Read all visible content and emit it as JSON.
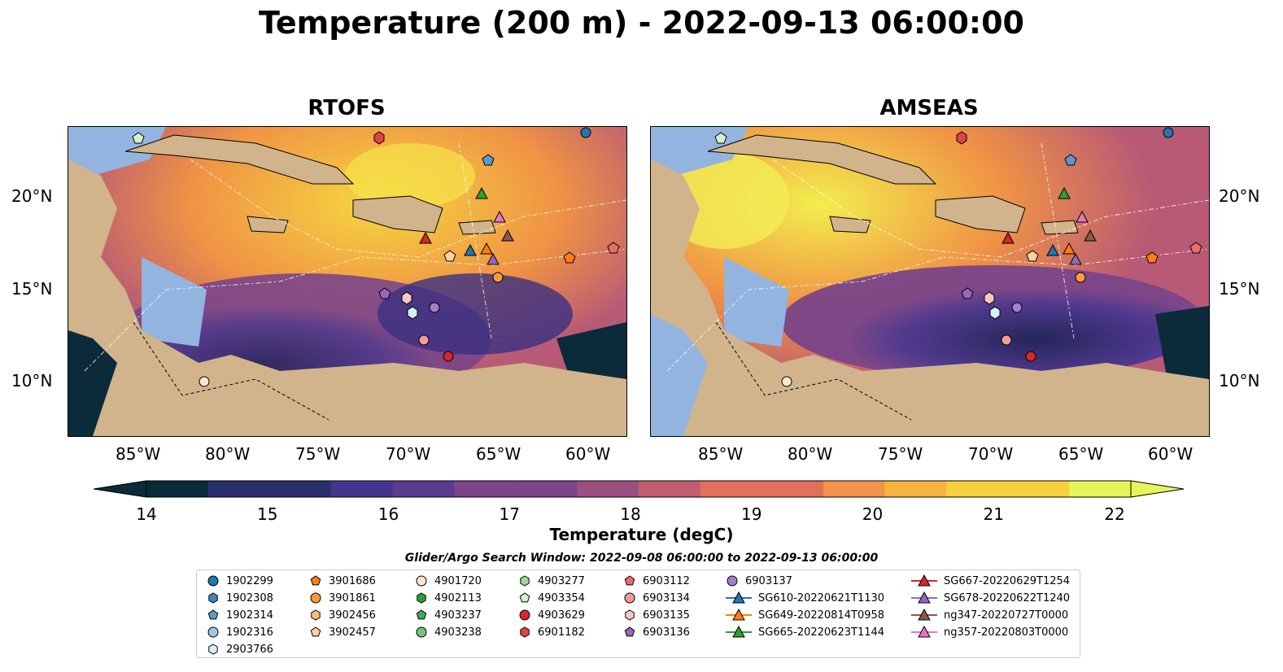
{
  "title": "Temperature (200 m) - 2022-09-13 06:00:00",
  "panels": [
    {
      "title": "RTOFS"
    },
    {
      "title": "AMSEAS"
    }
  ],
  "longitude_ticks": [
    "85°W",
    "80°W",
    "75°W",
    "70°W",
    "65°W",
    "60°W"
  ],
  "latitude_ticks": [
    "20°N",
    "15°N",
    "10°N"
  ],
  "colorbar": {
    "label": "Temperature (degC)",
    "min": 14,
    "max": 22,
    "ticks": [
      "14",
      "15",
      "16",
      "17",
      "18",
      "19",
      "20",
      "21",
      "22"
    ],
    "colormap_stops": [
      "#0b2a3a",
      "#2b2f6e",
      "#45348f",
      "#5b3a8f",
      "#7a4589",
      "#9b4f80",
      "#c05e6f",
      "#e0705a",
      "#f4934a",
      "#f6b33e",
      "#f5d13e",
      "#e8f55a"
    ]
  },
  "search_window": "Glider/Argo Search Window: 2022-09-08 06:00:00 to 2022-09-13 06:00:00",
  "colors": {
    "land": "#d2b48c",
    "shelf": "#94b4e0",
    "deep_ocean_warm": "#f39c45",
    "deep_ocean_cool": "#3d3388"
  },
  "legend": [
    {
      "label": "1902299",
      "marker": "circle",
      "color": "#1f77b4"
    },
    {
      "label": "1902308",
      "marker": "hexagon",
      "color": "#3b86c2"
    },
    {
      "label": "1902314",
      "marker": "pentagon",
      "color": "#5b9ad0"
    },
    {
      "label": "1902316",
      "marker": "circle",
      "color": "#9ecae1"
    },
    {
      "label": "2903766",
      "marker": "hexagon",
      "color": "#d6efff"
    },
    {
      "label": "3901686",
      "marker": "pentagon",
      "color": "#ff7f0e"
    },
    {
      "label": "3901861",
      "marker": "circle",
      "color": "#fd9a3e"
    },
    {
      "label": "3902456",
      "marker": "hexagon",
      "color": "#fdbb78"
    },
    {
      "label": "3902457",
      "marker": "pentagon",
      "color": "#fdd0a2"
    },
    {
      "label": "4901720",
      "marker": "circle",
      "color": "#fee6ce"
    },
    {
      "label": "4902113",
      "marker": "hexagon",
      "color": "#2ca02c"
    },
    {
      "label": "4903237",
      "marker": "pentagon",
      "color": "#41ab5d"
    },
    {
      "label": "4903238",
      "marker": "circle",
      "color": "#74c476"
    },
    {
      "label": "4903277",
      "marker": "hexagon",
      "color": "#a1d99b"
    },
    {
      "label": "4903354",
      "marker": "pentagon",
      "color": "#d3f2cc"
    },
    {
      "label": "4903629",
      "marker": "circle",
      "color": "#d62728"
    },
    {
      "label": "6901182",
      "marker": "hexagon",
      "color": "#e04545"
    },
    {
      "label": "6903112",
      "marker": "pentagon",
      "color": "#ef6b6b"
    },
    {
      "label": "6903134",
      "marker": "circle",
      "color": "#f59a9a"
    },
    {
      "label": "6903135",
      "marker": "hexagon",
      "color": "#fcc5c5"
    },
    {
      "label": "6903136",
      "marker": "pentagon",
      "color": "#9467bd"
    },
    {
      "label": "6903137",
      "marker": "circle",
      "color": "#a57fc9"
    },
    {
      "label": "SG610-20220621T1130",
      "marker": "triangle",
      "color": "#1f77b4"
    },
    {
      "label": "SG649-20220814T0958",
      "marker": "triangle",
      "color": "#ff7f0e"
    },
    {
      "label": "SG665-20220623T1144",
      "marker": "triangle",
      "color": "#2ca02c"
    },
    {
      "label": "SG667-20220629T1254",
      "marker": "triangle",
      "color": "#d62728"
    },
    {
      "label": "SG678-20220622T1240",
      "marker": "triangle",
      "color": "#9467bd"
    },
    {
      "label": "ng347-20220727T0000",
      "marker": "triangle",
      "color": "#8c564b"
    },
    {
      "label": "ng357-20220803T0000",
      "marker": "triangle",
      "color": "#e377c2"
    }
  ]
}
